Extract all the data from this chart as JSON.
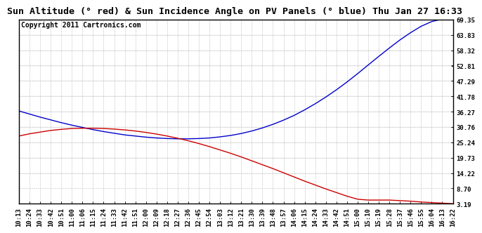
{
  "title": "Sun Altitude (° red) & Sun Incidence Angle on PV Panels (° blue) Thu Jan 27 16:33",
  "copyright": "Copyright 2011 Cartronics.com",
  "background_color": "#ffffff",
  "grid_color": "#bbbbbb",
  "yticks": [
    3.19,
    8.7,
    14.22,
    19.73,
    25.24,
    30.76,
    36.27,
    41.78,
    47.29,
    52.81,
    58.32,
    63.83,
    69.35
  ],
  "xtick_labels": [
    "10:13",
    "10:24",
    "10:33",
    "10:42",
    "10:51",
    "11:00",
    "11:06",
    "11:15",
    "11:24",
    "11:33",
    "11:42",
    "11:51",
    "12:00",
    "12:09",
    "12:18",
    "12:27",
    "12:36",
    "12:45",
    "12:54",
    "13:03",
    "13:12",
    "13:21",
    "13:30",
    "13:39",
    "13:48",
    "13:57",
    "14:06",
    "14:15",
    "14:24",
    "14:33",
    "14:42",
    "14:51",
    "15:00",
    "15:10",
    "15:19",
    "15:28",
    "15:37",
    "15:46",
    "15:55",
    "16:04",
    "16:13",
    "16:22"
  ],
  "blue_data": [
    36.5,
    35.4,
    34.3,
    33.3,
    32.3,
    31.4,
    30.6,
    29.8,
    29.1,
    28.5,
    27.9,
    27.5,
    27.1,
    26.8,
    26.6,
    26.5,
    26.5,
    26.6,
    26.8,
    27.2,
    27.7,
    28.4,
    29.3,
    30.4,
    31.7,
    33.2,
    34.9,
    36.9,
    39.1,
    41.5,
    44.1,
    46.9,
    49.9,
    53.0,
    56.1,
    59.1,
    62.0,
    64.6,
    66.9,
    68.6,
    69.5,
    69.35
  ],
  "red_data": [
    27.5,
    28.3,
    28.9,
    29.5,
    29.9,
    30.2,
    30.3,
    30.3,
    30.2,
    30.0,
    29.7,
    29.3,
    28.8,
    28.2,
    27.5,
    26.7,
    25.8,
    24.8,
    23.7,
    22.5,
    21.3,
    20.0,
    18.6,
    17.2,
    15.8,
    14.3,
    12.8,
    11.3,
    9.9,
    8.5,
    7.2,
    5.9,
    4.8,
    4.5,
    4.5,
    4.5,
    4.3,
    4.1,
    3.8,
    3.6,
    3.4,
    3.19
  ],
  "line_color_blue": "#0000cc",
  "line_color_red": "#cc0000",
  "title_fontsize": 9.5,
  "copyright_fontsize": 7,
  "tick_fontsize": 6.5,
  "ymin": 3.19,
  "ymax": 69.35
}
